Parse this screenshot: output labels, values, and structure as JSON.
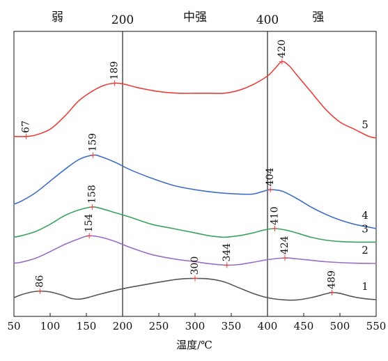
{
  "chart_data": {
    "type": "line",
    "xlabel": "温度/℃",
    "xlim": [
      50,
      550
    ],
    "xticks": [
      50,
      100,
      150,
      200,
      250,
      300,
      350,
      400,
      450,
      500,
      550
    ],
    "y_axis_shown": false,
    "grid": false,
    "boundaries": [
      {
        "x": 200,
        "label": "200"
      },
      {
        "x": 400,
        "label": "400"
      }
    ],
    "regions": [
      {
        "label": "弱",
        "x_center": 110
      },
      {
        "label": "中强",
        "x_center": 300
      },
      {
        "label": "强",
        "x_center": 470
      }
    ],
    "series": [
      {
        "name": "5",
        "color": "#e8403a",
        "points": [
          [
            50,
            0.785
          ],
          [
            67,
            0.785
          ],
          [
            80,
            0.79
          ],
          [
            100,
            0.81
          ],
          [
            120,
            0.855
          ],
          [
            140,
            0.91
          ],
          [
            160,
            0.945
          ],
          [
            175,
            0.963
          ],
          [
            189,
            0.97
          ],
          [
            200,
            0.968
          ],
          [
            220,
            0.955
          ],
          [
            240,
            0.945
          ],
          [
            260,
            0.938
          ],
          [
            280,
            0.935
          ],
          [
            300,
            0.935
          ],
          [
            320,
            0.935
          ],
          [
            340,
            0.935
          ],
          [
            360,
            0.945
          ],
          [
            380,
            0.965
          ],
          [
            400,
            0.995
          ],
          [
            410,
            1.02
          ],
          [
            420,
            1.045
          ],
          [
            430,
            1.03
          ],
          [
            440,
            1.0
          ],
          [
            460,
            0.94
          ],
          [
            480,
            0.88
          ],
          [
            500,
            0.835
          ],
          [
            520,
            0.81
          ],
          [
            540,
            0.785
          ],
          [
            550,
            0.78
          ]
        ],
        "peaks": [
          67,
          189,
          420
        ]
      },
      {
        "name": "4",
        "color": "#3f6fc2",
        "points": [
          [
            50,
            0.55
          ],
          [
            60,
            0.56
          ],
          [
            80,
            0.59
          ],
          [
            100,
            0.63
          ],
          [
            120,
            0.67
          ],
          [
            140,
            0.705
          ],
          [
            159,
            0.72
          ],
          [
            170,
            0.715
          ],
          [
            190,
            0.695
          ],
          [
            210,
            0.67
          ],
          [
            240,
            0.64
          ],
          [
            270,
            0.615
          ],
          [
            300,
            0.6
          ],
          [
            330,
            0.59
          ],
          [
            360,
            0.585
          ],
          [
            380,
            0.585
          ],
          [
            395,
            0.595
          ],
          [
            404,
            0.6
          ],
          [
            420,
            0.595
          ],
          [
            440,
            0.57
          ],
          [
            460,
            0.54
          ],
          [
            480,
            0.515
          ],
          [
            500,
            0.495
          ],
          [
            520,
            0.48
          ],
          [
            540,
            0.47
          ],
          [
            550,
            0.465
          ]
        ],
        "peaks": [
          159,
          404
        ]
      },
      {
        "name": "3",
        "color": "#3aa35f",
        "points": [
          [
            50,
            0.435
          ],
          [
            60,
            0.44
          ],
          [
            80,
            0.455
          ],
          [
            100,
            0.48
          ],
          [
            120,
            0.51
          ],
          [
            140,
            0.53
          ],
          [
            158,
            0.54
          ],
          [
            170,
            0.535
          ],
          [
            190,
            0.52
          ],
          [
            210,
            0.505
          ],
          [
            240,
            0.48
          ],
          [
            270,
            0.465
          ],
          [
            300,
            0.45
          ],
          [
            320,
            0.44
          ],
          [
            340,
            0.435
          ],
          [
            360,
            0.44
          ],
          [
            380,
            0.45
          ],
          [
            395,
            0.46
          ],
          [
            410,
            0.465
          ],
          [
            425,
            0.46
          ],
          [
            440,
            0.45
          ],
          [
            460,
            0.435
          ],
          [
            480,
            0.425
          ],
          [
            500,
            0.42
          ],
          [
            520,
            0.418
          ],
          [
            540,
            0.418
          ],
          [
            550,
            0.418
          ]
        ],
        "peaks": [
          158,
          410
        ]
      },
      {
        "name": "2",
        "color": "#9a6bc3",
        "points": [
          [
            50,
            0.345
          ],
          [
            60,
            0.348
          ],
          [
            80,
            0.362
          ],
          [
            100,
            0.385
          ],
          [
            120,
            0.41
          ],
          [
            140,
            0.43
          ],
          [
            154,
            0.44
          ],
          [
            170,
            0.435
          ],
          [
            190,
            0.42
          ],
          [
            210,
            0.4
          ],
          [
            240,
            0.375
          ],
          [
            270,
            0.36
          ],
          [
            300,
            0.35
          ],
          [
            320,
            0.343
          ],
          [
            344,
            0.338
          ],
          [
            360,
            0.34
          ],
          [
            380,
            0.348
          ],
          [
            400,
            0.357
          ],
          [
            424,
            0.363
          ],
          [
            440,
            0.36
          ],
          [
            460,
            0.355
          ],
          [
            480,
            0.35
          ],
          [
            500,
            0.347
          ],
          [
            520,
            0.345
          ],
          [
            540,
            0.344
          ],
          [
            550,
            0.344
          ]
        ],
        "peaks": [
          154,
          344,
          424
        ]
      },
      {
        "name": "1",
        "color": "#555555",
        "points": [
          [
            50,
            0.225
          ],
          [
            60,
            0.235
          ],
          [
            75,
            0.245
          ],
          [
            86,
            0.248
          ],
          [
            100,
            0.245
          ],
          [
            115,
            0.235
          ],
          [
            130,
            0.222
          ],
          [
            140,
            0.22
          ],
          [
            150,
            0.224
          ],
          [
            170,
            0.238
          ],
          [
            200,
            0.256
          ],
          [
            230,
            0.27
          ],
          [
            260,
            0.283
          ],
          [
            280,
            0.29
          ],
          [
            300,
            0.292
          ],
          [
            320,
            0.29
          ],
          [
            340,
            0.28
          ],
          [
            360,
            0.26
          ],
          [
            380,
            0.24
          ],
          [
            400,
            0.225
          ],
          [
            420,
            0.218
          ],
          [
            440,
            0.217
          ],
          [
            460,
            0.225
          ],
          [
            480,
            0.238
          ],
          [
            489,
            0.243
          ],
          [
            500,
            0.24
          ],
          [
            515,
            0.23
          ],
          [
            530,
            0.223
          ],
          [
            540,
            0.22
          ],
          [
            550,
            0.218
          ]
        ],
        "peaks": [
          86,
          300,
          489
        ]
      }
    ]
  }
}
